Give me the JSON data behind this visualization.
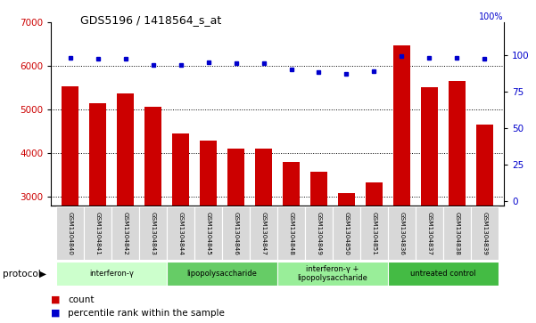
{
  "title": "GDS5196 / 1418564_s_at",
  "samples": [
    "GSM1304840",
    "GSM1304841",
    "GSM1304842",
    "GSM1304843",
    "GSM1304844",
    "GSM1304845",
    "GSM1304846",
    "GSM1304847",
    "GSM1304848",
    "GSM1304849",
    "GSM1304850",
    "GSM1304851",
    "GSM1304836",
    "GSM1304837",
    "GSM1304838",
    "GSM1304839"
  ],
  "counts": [
    5530,
    5150,
    5380,
    5060,
    4450,
    4280,
    4100,
    4100,
    3800,
    3560,
    3080,
    3320,
    6480,
    5520,
    5650,
    4660
  ],
  "percentiles": [
    98,
    97,
    97,
    93,
    93,
    95,
    94,
    94,
    90,
    88,
    87,
    89,
    99,
    98,
    98,
    97
  ],
  "bar_color": "#cc0000",
  "dot_color": "#0000cc",
  "ylim_left": [
    2800,
    7000
  ],
  "ylim_right": [
    -3.0,
    122.0
  ],
  "yticks_left": [
    3000,
    4000,
    5000,
    6000,
    7000
  ],
  "yticks_right": [
    0,
    25,
    50,
    75,
    100
  ],
  "groups": [
    {
      "label": "interferon-γ",
      "start": 0,
      "end": 4,
      "color": "#ccffcc"
    },
    {
      "label": "lipopolysaccharide",
      "start": 4,
      "end": 8,
      "color": "#66cc66"
    },
    {
      "label": "interferon-γ +\nlipopolysaccharide",
      "start": 8,
      "end": 12,
      "color": "#99ee99"
    },
    {
      "label": "untreated control",
      "start": 12,
      "end": 16,
      "color": "#44bb44"
    }
  ],
  "protocol_label": "protocol",
  "legend_count_label": "count",
  "legend_percentile_label": "percentile rank within the sample",
  "background_color": "#ffffff",
  "tick_label_color_left": "#cc0000",
  "tick_label_color_right": "#0000cc",
  "dot_percentile_display": 98.5
}
